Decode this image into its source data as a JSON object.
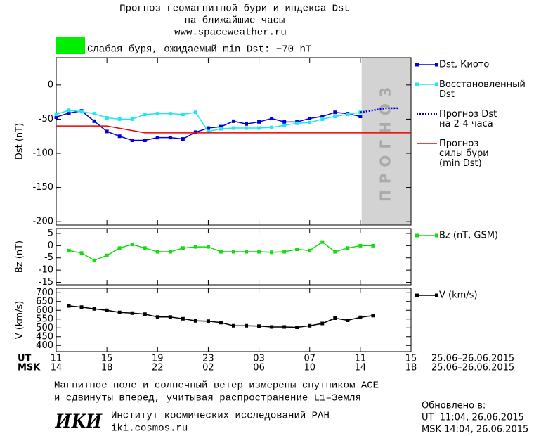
{
  "header": {
    "title": "Прогноз геомагнитной бури и индекса Dst",
    "title2": "на ближайшие часы",
    "url": "www.spaceweather.ru",
    "status": "Слабая буря, ожидаемый min Dst: −70 nT",
    "status_color": "#00ee00"
  },
  "x_axis": {
    "ut_label": "UT",
    "msk_label": "MSK",
    "date_range": "25.06–26.06.2015",
    "ut_ticks": [
      {
        "value": 0,
        "label": "11"
      },
      {
        "value": 4,
        "label": "15"
      },
      {
        "value": 8,
        "label": "19"
      },
      {
        "value": 12,
        "label": "23"
      },
      {
        "value": 16,
        "label": "03"
      },
      {
        "value": 20,
        "label": "07"
      },
      {
        "value": 24,
        "label": "11"
      },
      {
        "value": 28,
        "label": "15"
      }
    ],
    "msk_ticks": [
      {
        "value": 0,
        "label": "14"
      },
      {
        "value": 4,
        "label": "18"
      },
      {
        "value": 8,
        "label": "22"
      },
      {
        "value": 12,
        "label": "02"
      },
      {
        "value": 16,
        "label": "06"
      },
      {
        "value": 20,
        "label": "10"
      },
      {
        "value": 24,
        "label": "14"
      },
      {
        "value": 28,
        "label": "18"
      }
    ]
  },
  "chart_data": [
    {
      "type": "line",
      "y_label": "Dst (nT)",
      "xlim": [
        0,
        28
      ],
      "ylim": [
        -205,
        40
      ],
      "yticks": [
        0,
        -50,
        -100,
        -150,
        -200
      ],
      "forecast_band": {
        "from": 24.1,
        "to": 28,
        "label": "ПРОГНОЗ",
        "color": "#d3d3d3"
      },
      "series": [
        {
          "name": "Dst, Киото",
          "color": "#0000dd",
          "marker": true,
          "dotted": false,
          "x": [
            0,
            1,
            2,
            3,
            4,
            5,
            6,
            7,
            8,
            9,
            10,
            11,
            12,
            13,
            14,
            15,
            16,
            17,
            18,
            19,
            20,
            21,
            22,
            23,
            24
          ],
          "values": [
            -47,
            -41,
            -38,
            -53,
            -68,
            -75,
            -81,
            -81,
            -77,
            -77,
            -79,
            -69,
            -63,
            -61,
            -53,
            -57,
            -54,
            -49,
            -54,
            -54,
            -49,
            -46,
            -40,
            -42,
            -46
          ]
        },
        {
          "name": "Восстановленный\nDst",
          "color": "#22e5ee",
          "marker": true,
          "dotted": false,
          "x": [
            0,
            1,
            2,
            3,
            4,
            5,
            6,
            7,
            8,
            9,
            10,
            11,
            12,
            13,
            14,
            15,
            16,
            17,
            18,
            19,
            20,
            21,
            22,
            23,
            24
          ],
          "values": [
            -43,
            -37,
            -39,
            -42,
            -48,
            -50,
            -50,
            -43,
            -42,
            -42,
            -43,
            -40,
            -68,
            -64,
            -63,
            -63,
            -63,
            -62,
            -59,
            -56,
            -55,
            -50,
            -46,
            -43,
            -40
          ]
        },
        {
          "name": "Прогноз Dst\nна 2-4 часа",
          "color": "#0000dd",
          "marker": false,
          "dotted": true,
          "x": [
            24,
            25,
            26,
            27
          ],
          "values": [
            -40,
            -37,
            -34,
            -34
          ]
        },
        {
          "name": "Прогноз\nсилы бури\n(min Dst)",
          "color": "#ee0000",
          "marker": false,
          "dotted": false,
          "x": [
            0,
            4,
            7,
            28
          ],
          "values": [
            -60,
            -60,
            -70,
            -70
          ]
        }
      ]
    },
    {
      "type": "line",
      "y_label": "Bz (nT)",
      "xlim": [
        0,
        28
      ],
      "ylim": [
        -16,
        7
      ],
      "yticks": [
        5,
        0,
        -5,
        -10,
        -15
      ],
      "series": [
        {
          "name": "Bz (nT, GSM)",
          "color": "#11dd11",
          "marker": true,
          "dotted": false,
          "x": [
            1,
            2,
            3,
            4,
            5,
            6,
            7,
            8,
            9,
            10,
            11,
            12,
            13,
            14,
            15,
            16,
            17,
            18,
            19,
            20,
            21,
            22,
            23,
            24,
            25
          ],
          "values": [
            -2,
            -3,
            -6,
            -4,
            -1,
            0.5,
            -1,
            -2.5,
            -2.5,
            -1,
            -0.5,
            -0.5,
            -2.5,
            -2.5,
            -2.5,
            -2.5,
            -2.7,
            -2.5,
            -1.5,
            -2,
            1.5,
            -2.5,
            -1,
            0,
            0
          ]
        }
      ]
    },
    {
      "type": "line",
      "y_label": "V (km/s)",
      "xlim": [
        0,
        28
      ],
      "ylim": [
        365,
        725
      ],
      "yticks": [
        400,
        450,
        500,
        550,
        600,
        650,
        700
      ],
      "series": [
        {
          "name": "V (km/s)",
          "color": "#000000",
          "marker": true,
          "dotted": false,
          "x": [
            1,
            2,
            3,
            4,
            5,
            6,
            7,
            8,
            9,
            10,
            11,
            12,
            13,
            14,
            15,
            16,
            17,
            18,
            19,
            20,
            21,
            22,
            23,
            24,
            25
          ],
          "values": [
            625,
            618,
            608,
            600,
            588,
            584,
            578,
            562,
            562,
            552,
            540,
            538,
            530,
            512,
            512,
            510,
            505,
            505,
            503,
            512,
            525,
            555,
            543,
            560,
            570
          ]
        }
      ]
    }
  ],
  "footer": {
    "note1": "Магнитное поле и солнечный ветер измерены спутником ACE",
    "note2": "и сдвинуты вперед, учитывая распространение L1–Земля",
    "logo": "ИКИ",
    "institute": "Институт космических исследований РАН",
    "site": "iki.cosmos.ru",
    "updated": "Обновлено в:",
    "updated_ut": "UT  11:04, 26.06.2015",
    "updated_msk": "MSK 14:04, 26.06.2015"
  }
}
